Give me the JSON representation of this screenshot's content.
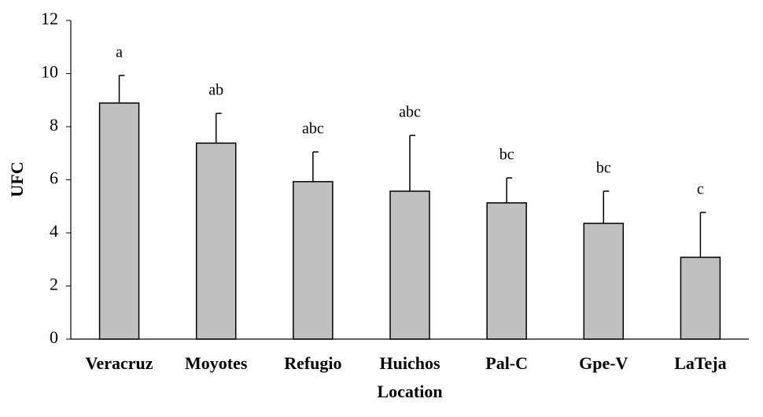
{
  "chart_data": {
    "type": "bar",
    "x_label": "Location",
    "y_label": "UFC",
    "categories": [
      "Veracruz",
      "Moyotes",
      "Refugio",
      "Huichos",
      "Pal-C",
      "Gpe-V",
      "LaTeja"
    ],
    "values": [
      8.89,
      7.38,
      5.93,
      5.57,
      5.13,
      4.36,
      3.08
    ],
    "errors": [
      1.04,
      1.12,
      1.12,
      2.1,
      0.94,
      1.21,
      1.69
    ],
    "annotations": [
      "a",
      "ab",
      "abc",
      "abc",
      "bc",
      "bc",
      "c"
    ],
    "color": "#c0c0c0",
    "ylim": [
      0,
      12
    ],
    "yticks": [
      0,
      2,
      4,
      6,
      8,
      10,
      12
    ],
    "grid": false
  }
}
